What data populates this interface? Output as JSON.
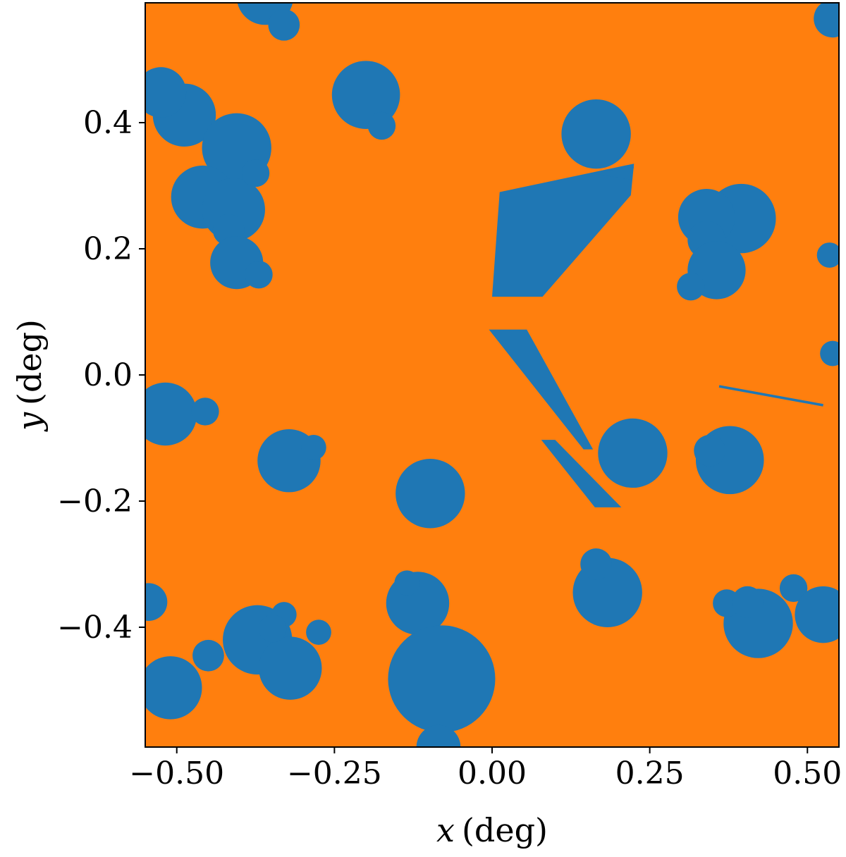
{
  "chart_data": {
    "type": "scatter",
    "description_free": true,
    "xlabel": "x (deg)",
    "ylabel": "y (deg)",
    "xlabel_var": "x",
    "ylabel_var": "y",
    "unit": "(deg)",
    "xlim": [
      -0.55,
      0.55
    ],
    "ylim": [
      -0.59,
      0.59
    ],
    "xticks": [
      -0.5,
      -0.25,
      0.0,
      0.25,
      0.5
    ],
    "xtick_labels": [
      "−0.50",
      "−0.25",
      "0.00",
      "0.25",
      "0.50"
    ],
    "yticks": [
      -0.4,
      -0.2,
      0.0,
      0.2,
      0.4
    ],
    "ytick_labels": [
      "−0.4",
      "−0.2",
      "0.0",
      "0.2",
      "0.4"
    ],
    "grid": false,
    "colors": {
      "background_region": "#ff7f0e",
      "masked_region": "#1f77b4"
    },
    "masks": [
      {
        "x": -0.488,
        "y": 0.412,
        "r": 0.05
      },
      {
        "x": -0.405,
        "y": 0.36,
        "r": 0.055
      },
      {
        "x": -0.459,
        "y": 0.282,
        "r": 0.05
      },
      {
        "x": -0.41,
        "y": 0.262,
        "r": 0.05
      },
      {
        "x": -0.418,
        "y": 0.23,
        "r": 0.025
      },
      {
        "x": -0.405,
        "y": 0.178,
        "r": 0.042
      },
      {
        "x": -0.37,
        "y": 0.159,
        "r": 0.022
      },
      {
        "x": -0.375,
        "y": 0.32,
        "r": 0.022
      },
      {
        "x": -0.525,
        "y": 0.448,
        "r": 0.04
      },
      {
        "x": -0.36,
        "y": 0.6,
        "r": 0.045
      },
      {
        "x": -0.33,
        "y": 0.555,
        "r": 0.025
      },
      {
        "x": -0.2,
        "y": 0.444,
        "r": 0.054
      },
      {
        "x": -0.175,
        "y": 0.395,
        "r": 0.022
      },
      {
        "x": 0.165,
        "y": 0.382,
        "r": 0.055
      },
      {
        "x": 0.395,
        "y": 0.248,
        "r": 0.055
      },
      {
        "x": 0.34,
        "y": 0.25,
        "r": 0.045
      },
      {
        "x": 0.34,
        "y": 0.214,
        "r": 0.03
      },
      {
        "x": 0.356,
        "y": 0.166,
        "r": 0.046
      },
      {
        "x": 0.315,
        "y": 0.14,
        "r": 0.022
      },
      {
        "x": 0.54,
        "y": 0.565,
        "r": 0.03
      },
      {
        "x": 0.535,
        "y": 0.19,
        "r": 0.02
      },
      {
        "x": 0.54,
        "y": 0.034,
        "r": 0.02
      },
      {
        "x": -0.518,
        "y": -0.062,
        "r": 0.05
      },
      {
        "x": -0.455,
        "y": -0.058,
        "r": 0.022
      },
      {
        "x": -0.322,
        "y": -0.136,
        "r": 0.05
      },
      {
        "x": -0.283,
        "y": -0.115,
        "r": 0.02
      },
      {
        "x": -0.098,
        "y": -0.188,
        "r": 0.055
      },
      {
        "x": 0.223,
        "y": -0.124,
        "r": 0.055
      },
      {
        "x": 0.377,
        "y": -0.135,
        "r": 0.054
      },
      {
        "x": 0.345,
        "y": -0.12,
        "r": 0.025
      },
      {
        "x": 0.183,
        "y": -0.345,
        "r": 0.055
      },
      {
        "x": 0.165,
        "y": -0.3,
        "r": 0.025
      },
      {
        "x": -0.118,
        "y": -0.362,
        "r": 0.05
      },
      {
        "x": -0.135,
        "y": -0.33,
        "r": 0.02
      },
      {
        "x": -0.08,
        "y": -0.482,
        "r": 0.085
      },
      {
        "x": -0.085,
        "y": -0.59,
        "r": 0.035
      },
      {
        "x": -0.372,
        "y": -0.42,
        "r": 0.055
      },
      {
        "x": -0.32,
        "y": -0.465,
        "r": 0.05
      },
      {
        "x": -0.33,
        "y": -0.38,
        "r": 0.02
      },
      {
        "x": -0.275,
        "y": -0.408,
        "r": 0.02
      },
      {
        "x": -0.348,
        "y": -0.402,
        "r": 0.022
      },
      {
        "x": -0.51,
        "y": -0.496,
        "r": 0.05
      },
      {
        "x": -0.45,
        "y": -0.445,
        "r": 0.025
      },
      {
        "x": 0.422,
        "y": -0.394,
        "r": 0.055
      },
      {
        "x": 0.372,
        "y": -0.362,
        "r": 0.022
      },
      {
        "x": 0.405,
        "y": -0.36,
        "r": 0.025
      },
      {
        "x": 0.478,
        "y": -0.338,
        "r": 0.022
      },
      {
        "x": 0.525,
        "y": -0.38,
        "r": 0.045
      },
      {
        "x": -0.545,
        "y": -0.36,
        "r": 0.03
      }
    ],
    "polygons": [
      [
        [
          0.012,
          0.29
        ],
        [
          0.225,
          0.335
        ],
        [
          0.22,
          0.285
        ],
        [
          0.08,
          0.124
        ],
        [
          0.0,
          0.124
        ]
      ],
      [
        [
          -0.005,
          0.072
        ],
        [
          0.055,
          0.072
        ],
        [
          0.16,
          -0.118
        ],
        [
          0.145,
          -0.118
        ]
      ],
      [
        [
          0.078,
          -0.103
        ],
        [
          0.1,
          -0.103
        ],
        [
          0.205,
          -0.21
        ],
        [
          0.163,
          -0.21
        ]
      ],
      [
        [
          0.155,
          0.32
        ],
        [
          0.225,
          0.33
        ],
        [
          0.22,
          0.31
        ]
      ]
    ],
    "streaks": [
      {
        "x1": 0.36,
        "y1": -0.018,
        "x2": 0.525,
        "y2": -0.048,
        "w": 0.004
      }
    ]
  }
}
